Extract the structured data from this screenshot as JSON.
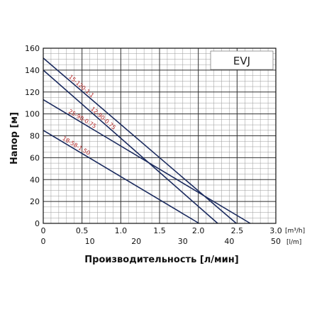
{
  "chart_data": {
    "type": "line",
    "title": "",
    "legend_text": "EVJ",
    "legend_position": "top-right",
    "grid": true,
    "xlabel": "Производительность [л/мин]",
    "ylabel": "Напор [м]",
    "x_unit": "[l/m]",
    "x2_unit": "[m³/h]",
    "xlim": [
      0,
      50
    ],
    "ylim": [
      0,
      160
    ],
    "x_ticks": [
      "0",
      "10",
      "20",
      "30",
      "40",
      "50"
    ],
    "x2_ticks": [
      "0",
      "0.5",
      "1.0",
      "1.5",
      "2.0",
      "2.5",
      "3.0"
    ],
    "y_ticks": [
      "0",
      "20",
      "40",
      "60",
      "80",
      "100",
      "120",
      "140",
      "160"
    ],
    "series": [
      {
        "name": "15-120-1.1",
        "color": "#1a2a5e",
        "x": [
          0,
          41.5
        ],
        "y": [
          151,
          0
        ]
      },
      {
        "name": "12-90-0.75",
        "color": "#1a2a5e",
        "x": [
          0,
          37.5
        ],
        "y": [
          140,
          0
        ]
      },
      {
        "name": "25-90-0.75",
        "color": "#1a2a5e",
        "x": [
          0,
          44.5
        ],
        "y": [
          113,
          0
        ]
      },
      {
        "name": "18-58-1.50",
        "color": "#1a2a5e",
        "x": [
          0,
          33.5
        ],
        "y": [
          85,
          0
        ]
      }
    ]
  }
}
